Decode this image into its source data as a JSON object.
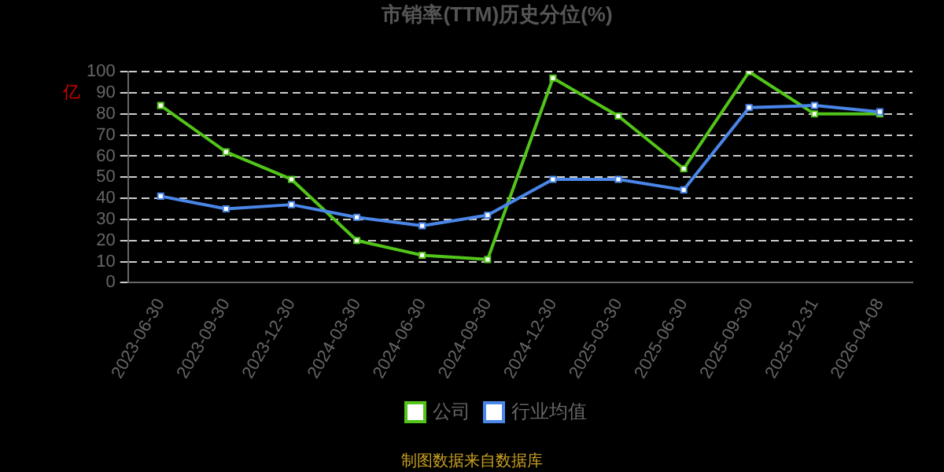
{
  "chart_data": {
    "type": "line",
    "title": "市销率(TTM)历史分位(%)",
    "ylabel": "亿",
    "categories": [
      "2023-06-30",
      "2023-09-30",
      "2023-12-30",
      "2024-03-30",
      "2024-06-30",
      "2024-09-30",
      "2024-12-30",
      "2025-03-30",
      "2025-06-30",
      "2025-09-30",
      "2025-12-31",
      "2026-04-08"
    ],
    "series": [
      {
        "name": "公司",
        "color": "#52c41a",
        "values": [
          84,
          62,
          49,
          20,
          13,
          11,
          97,
          79,
          54,
          100,
          80,
          80
        ]
      },
      {
        "name": "行业均值",
        "color": "#4a86e8",
        "values": [
          41,
          35,
          37,
          31,
          27,
          32,
          49,
          49,
          44,
          83,
          84,
          81
        ]
      }
    ],
    "ylim": [
      0,
      100
    ],
    "yticks": [
      0,
      10,
      20,
      30,
      40,
      50,
      60,
      70,
      80,
      90,
      100
    ],
    "grid": "y",
    "legend": "bottom",
    "marker": "square",
    "line_style": "solid",
    "annotations": [
      "制图数据来自数据库"
    ]
  }
}
